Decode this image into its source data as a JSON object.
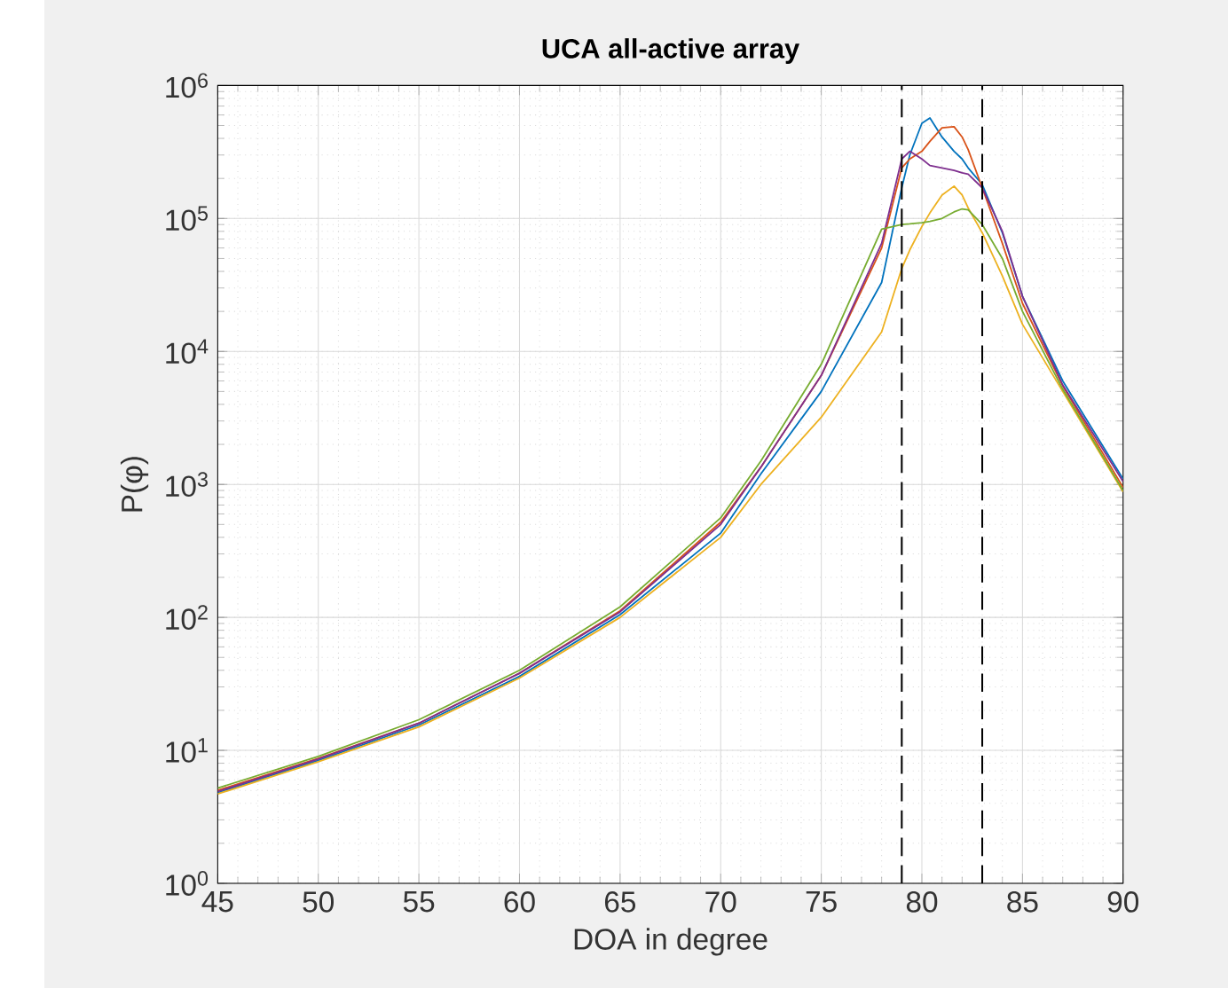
{
  "chart_data": {
    "type": "line",
    "title": "UCA all-active array",
    "xlabel": "DOA in degree",
    "ylabel": "P(φ)",
    "log": "y",
    "grid": true,
    "marker": "none",
    "line_style": "solid",
    "xlim": [
      45,
      90
    ],
    "xticks": [
      45,
      50,
      55,
      60,
      65,
      70,
      75,
      80,
      85,
      90
    ],
    "ylim": [
      1,
      1000000
    ],
    "yticks": [
      {
        "value": 1,
        "label": "10$^{0}$"
      },
      {
        "value": 10,
        "label": "10$^{1}$"
      },
      {
        "value": 100,
        "label": "10$^{2}$"
      },
      {
        "value": 1000,
        "label": "10$^{3}$"
      },
      {
        "value": 10000,
        "label": "10$^{4}$"
      },
      {
        "value": 100000,
        "label": "10$^{5}$"
      },
      {
        "value": 1000000,
        "label": "10$^{6}$"
      }
    ],
    "x": [
      45,
      50,
      55,
      60,
      65,
      70,
      72,
      75,
      78,
      79,
      79.4,
      80,
      80.4,
      81,
      81.6,
      82,
      82.3,
      83,
      84,
      85,
      87,
      90
    ],
    "series": [
      {
        "color": "#0072bd",
        "values": [
          4.8,
          8.4,
          15.5,
          36,
          105,
          430,
          1200,
          5000,
          33000,
          170000,
          300000,
          520000,
          570000,
          410000,
          320000,
          280000,
          240000,
          180000,
          78000,
          26000,
          6000,
          1100
        ]
      },
      {
        "color": "#d95319",
        "values": [
          5.0,
          8.7,
          16,
          38,
          112,
          520,
          1350,
          6600,
          60000,
          240000,
          280000,
          320000,
          380000,
          480000,
          490000,
          410000,
          330000,
          170000,
          65000,
          23000,
          5500,
          950
        ]
      },
      {
        "color": "#edb120",
        "values": [
          4.7,
          8.2,
          15,
          35,
          100,
          400,
          1000,
          3200,
          14000,
          42000,
          58000,
          87000,
          110000,
          150000,
          175000,
          150000,
          120000,
          78000,
          37000,
          16000,
          5000,
          880
        ]
      },
      {
        "color": "#7e2f8e",
        "values": [
          4.9,
          8.6,
          16,
          38,
          110,
          500,
          1350,
          6600,
          65000,
          280000,
          320000,
          280000,
          250000,
          240000,
          230000,
          220000,
          215000,
          170000,
          80000,
          26000,
          5600,
          1050
        ]
      },
      {
        "color": "#77ac30",
        "values": [
          5.2,
          9,
          17,
          40,
          120,
          560,
          1500,
          8000,
          83000,
          90000,
          91000,
          93000,
          95000,
          100000,
          112000,
          118000,
          116000,
          90000,
          50000,
          20000,
          5200,
          900
        ]
      }
    ],
    "ref_lines": [
      {
        "axis": "x",
        "value": 79,
        "color": "#000000",
        "line_style": "dashed"
      },
      {
        "axis": "x",
        "value": 83,
        "color": "#000000",
        "line_style": "dashed"
      }
    ]
  }
}
